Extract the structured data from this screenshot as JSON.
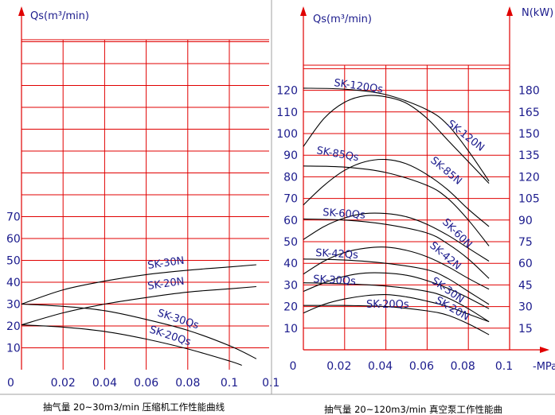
{
  "chart_data": [
    {
      "type": "line",
      "ylabel": "Qs(m³/min)",
      "xlabel": "",
      "xticks": [
        "0",
        "0.02",
        "0.04",
        "0.06",
        "0.08",
        "0.1",
        "0.1"
      ],
      "yticks": [
        "10",
        "20",
        "30",
        "40",
        "50",
        "60",
        "70"
      ],
      "xlim": [
        0,
        0.12
      ],
      "ylim": [
        0,
        160
      ],
      "caption": "抽气量 20~30m3/min 压缩机工作性能曲线",
      "series": [
        {
          "name": "SK-30N",
          "x": [
            0,
            0.02,
            0.04,
            0.06,
            0.08,
            0.1,
            0.113
          ],
          "y": [
            30,
            36.5,
            40.5,
            43.5,
            45.5,
            47,
            48
          ]
        },
        {
          "name": "SK-20N",
          "x": [
            0,
            0.02,
            0.04,
            0.06,
            0.08,
            0.1,
            0.113
          ],
          "y": [
            20.5,
            26,
            30,
            33,
            35.5,
            37,
            38
          ]
        },
        {
          "name": "SK-30Qs",
          "x": [
            0,
            0.02,
            0.04,
            0.06,
            0.08,
            0.1,
            0.113
          ],
          "y": [
            30,
            29,
            27,
            23,
            18,
            11,
            5
          ]
        },
        {
          "name": "SK-20Qs",
          "x": [
            0,
            0.02,
            0.04,
            0.06,
            0.08,
            0.1,
            0.106
          ],
          "y": [
            20.5,
            19.5,
            17.5,
            14,
            9.5,
            4,
            2
          ]
        }
      ]
    },
    {
      "type": "line",
      "ylabel": "Qs(m³/min)",
      "y2label": "N(kW)",
      "xlabel": "",
      "xunit": "MPa",
      "xticks": [
        "0",
        "0.02",
        "0.04",
        "0.06",
        "0.08",
        "0.1"
      ],
      "yticks": [
        "10",
        "20",
        "30",
        "40",
        "50",
        "60",
        "70",
        "80",
        "90",
        "100",
        "110",
        "120"
      ],
      "y2ticks": [
        "15",
        "30",
        "45",
        "60",
        "75",
        "90",
        "105",
        "120",
        "135",
        "150",
        "165",
        "180"
      ],
      "xlim": [
        0,
        0.1
      ],
      "ylim": [
        0,
        132
      ],
      "y2lim": [
        0,
        198
      ],
      "caption": "抽气量 20~120m3/min 真空泵工作性能曲",
      "series": [
        {
          "name": "SK-120Qs",
          "x": [
            0,
            0.02,
            0.04,
            0.06,
            0.07,
            0.08,
            0.09
          ],
          "y": [
            121,
            120.5,
            118,
            111,
            104,
            92,
            78
          ]
        },
        {
          "name": "SK-120N",
          "x": [
            0,
            0.01,
            0.02,
            0.03,
            0.04,
            0.05,
            0.06,
            0.07,
            0.08,
            0.09
          ],
          "y": [
            94,
            107,
            114.5,
            117.5,
            117,
            114,
            107,
            97,
            87,
            77
          ]
        },
        {
          "name": "SK-85Qs",
          "x": [
            0,
            0.02,
            0.04,
            0.06,
            0.07,
            0.08,
            0.09
          ],
          "y": [
            85,
            84.5,
            82,
            76,
            70,
            60,
            48
          ]
        },
        {
          "name": "SK-85N",
          "x": [
            0,
            0.01,
            0.02,
            0.03,
            0.04,
            0.05,
            0.06,
            0.07,
            0.08,
            0.09
          ],
          "y": [
            67,
            76,
            83,
            87,
            88,
            86,
            81,
            74,
            65,
            57
          ]
        },
        {
          "name": "SK-60Qs",
          "x": [
            0,
            0.02,
            0.04,
            0.06,
            0.07,
            0.08,
            0.09
          ],
          "y": [
            60.5,
            60,
            58,
            54,
            49,
            42,
            33
          ]
        },
        {
          "name": "SK-60N",
          "x": [
            0,
            0.01,
            0.02,
            0.03,
            0.04,
            0.05,
            0.06,
            0.07,
            0.08,
            0.09
          ],
          "y": [
            51,
            57,
            61,
            63,
            63,
            61.5,
            58,
            53,
            47,
            41
          ]
        },
        {
          "name": "SK-42Qs",
          "x": [
            0,
            0.02,
            0.04,
            0.06,
            0.07,
            0.08,
            0.09
          ],
          "y": [
            42,
            41.5,
            40,
            37,
            33,
            27,
            21
          ]
        },
        {
          "name": "SK-42N",
          "x": [
            0,
            0.01,
            0.02,
            0.03,
            0.04,
            0.05,
            0.06,
            0.07,
            0.08,
            0.09
          ],
          "y": [
            35,
            41,
            45,
            47,
            47.5,
            46,
            43,
            38.5,
            33,
            28
          ]
        },
        {
          "name": "SK-30Qs",
          "x": [
            0,
            0.02,
            0.04,
            0.06,
            0.07,
            0.08,
            0.09
          ],
          "y": [
            31,
            30.5,
            29.5,
            27,
            24,
            19,
            13
          ]
        },
        {
          "name": "SK-30N",
          "x": [
            0,
            0.01,
            0.02,
            0.03,
            0.04,
            0.05,
            0.06,
            0.07,
            0.08,
            0.09
          ],
          "y": [
            27,
            31,
            34,
            35.5,
            35.5,
            34.5,
            32,
            28.5,
            24,
            19
          ]
        },
        {
          "name": "SK-20Qs",
          "x": [
            0,
            0.02,
            0.04,
            0.06,
            0.07,
            0.08,
            0.09
          ],
          "y": [
            20.5,
            20.5,
            20,
            18,
            16,
            12,
            7
          ]
        },
        {
          "name": "SK-20N",
          "x": [
            0,
            0.01,
            0.02,
            0.03,
            0.04,
            0.05,
            0.06,
            0.07,
            0.08,
            0.09
          ],
          "y": [
            17,
            21,
            23.5,
            25,
            25.5,
            24.5,
            22.5,
            20,
            16.5,
            13
          ]
        }
      ]
    }
  ]
}
